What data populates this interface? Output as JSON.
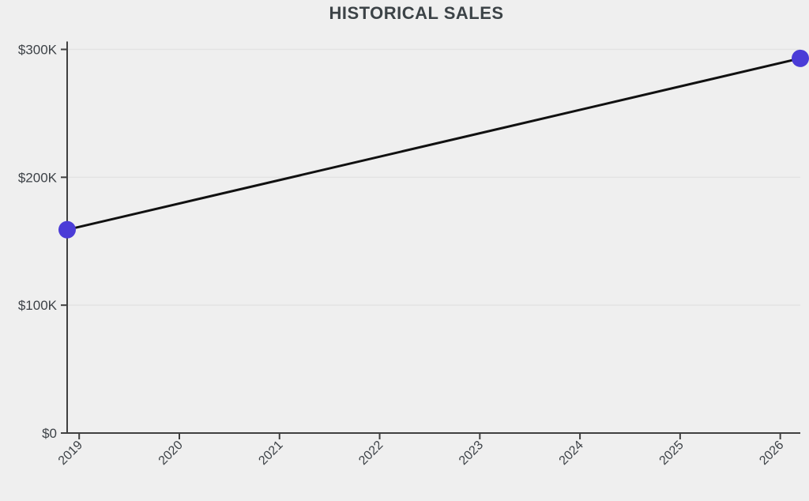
{
  "chart_data": {
    "type": "line",
    "title": "HISTORICAL SALES",
    "xlabel": "",
    "ylabel": "",
    "xlim": [
      2018.88,
      2026.2
    ],
    "ylim": [
      0,
      300000
    ],
    "x_tick_values": [
      2019,
      2020,
      2021,
      2022,
      2023,
      2024,
      2025,
      2026
    ],
    "x_tick_labels": [
      "2019",
      "2020",
      "2021",
      "2022",
      "2023",
      "2024",
      "2025",
      "2026"
    ],
    "y_tick_values": [
      0,
      100000,
      200000,
      300000
    ],
    "y_tick_labels": [
      "$0",
      "$100K",
      "$200K",
      "$300K"
    ],
    "grid": "horizontal-only",
    "legend": "none",
    "series": [
      {
        "name": "Historical Sales",
        "points": [
          {
            "x": 2018.88,
            "y": 159000
          },
          {
            "x": 2026.2,
            "y": 293000
          }
        ]
      }
    ],
    "colors": {
      "background": "#efefef",
      "gridline": "#e3e3e3",
      "axis": "#404040",
      "tick_text": "#3d4247",
      "title_text": "#3c4347",
      "line": "#111111",
      "marker": "#4b3cd7"
    },
    "marker_radius": 11,
    "line_width": 3
  }
}
